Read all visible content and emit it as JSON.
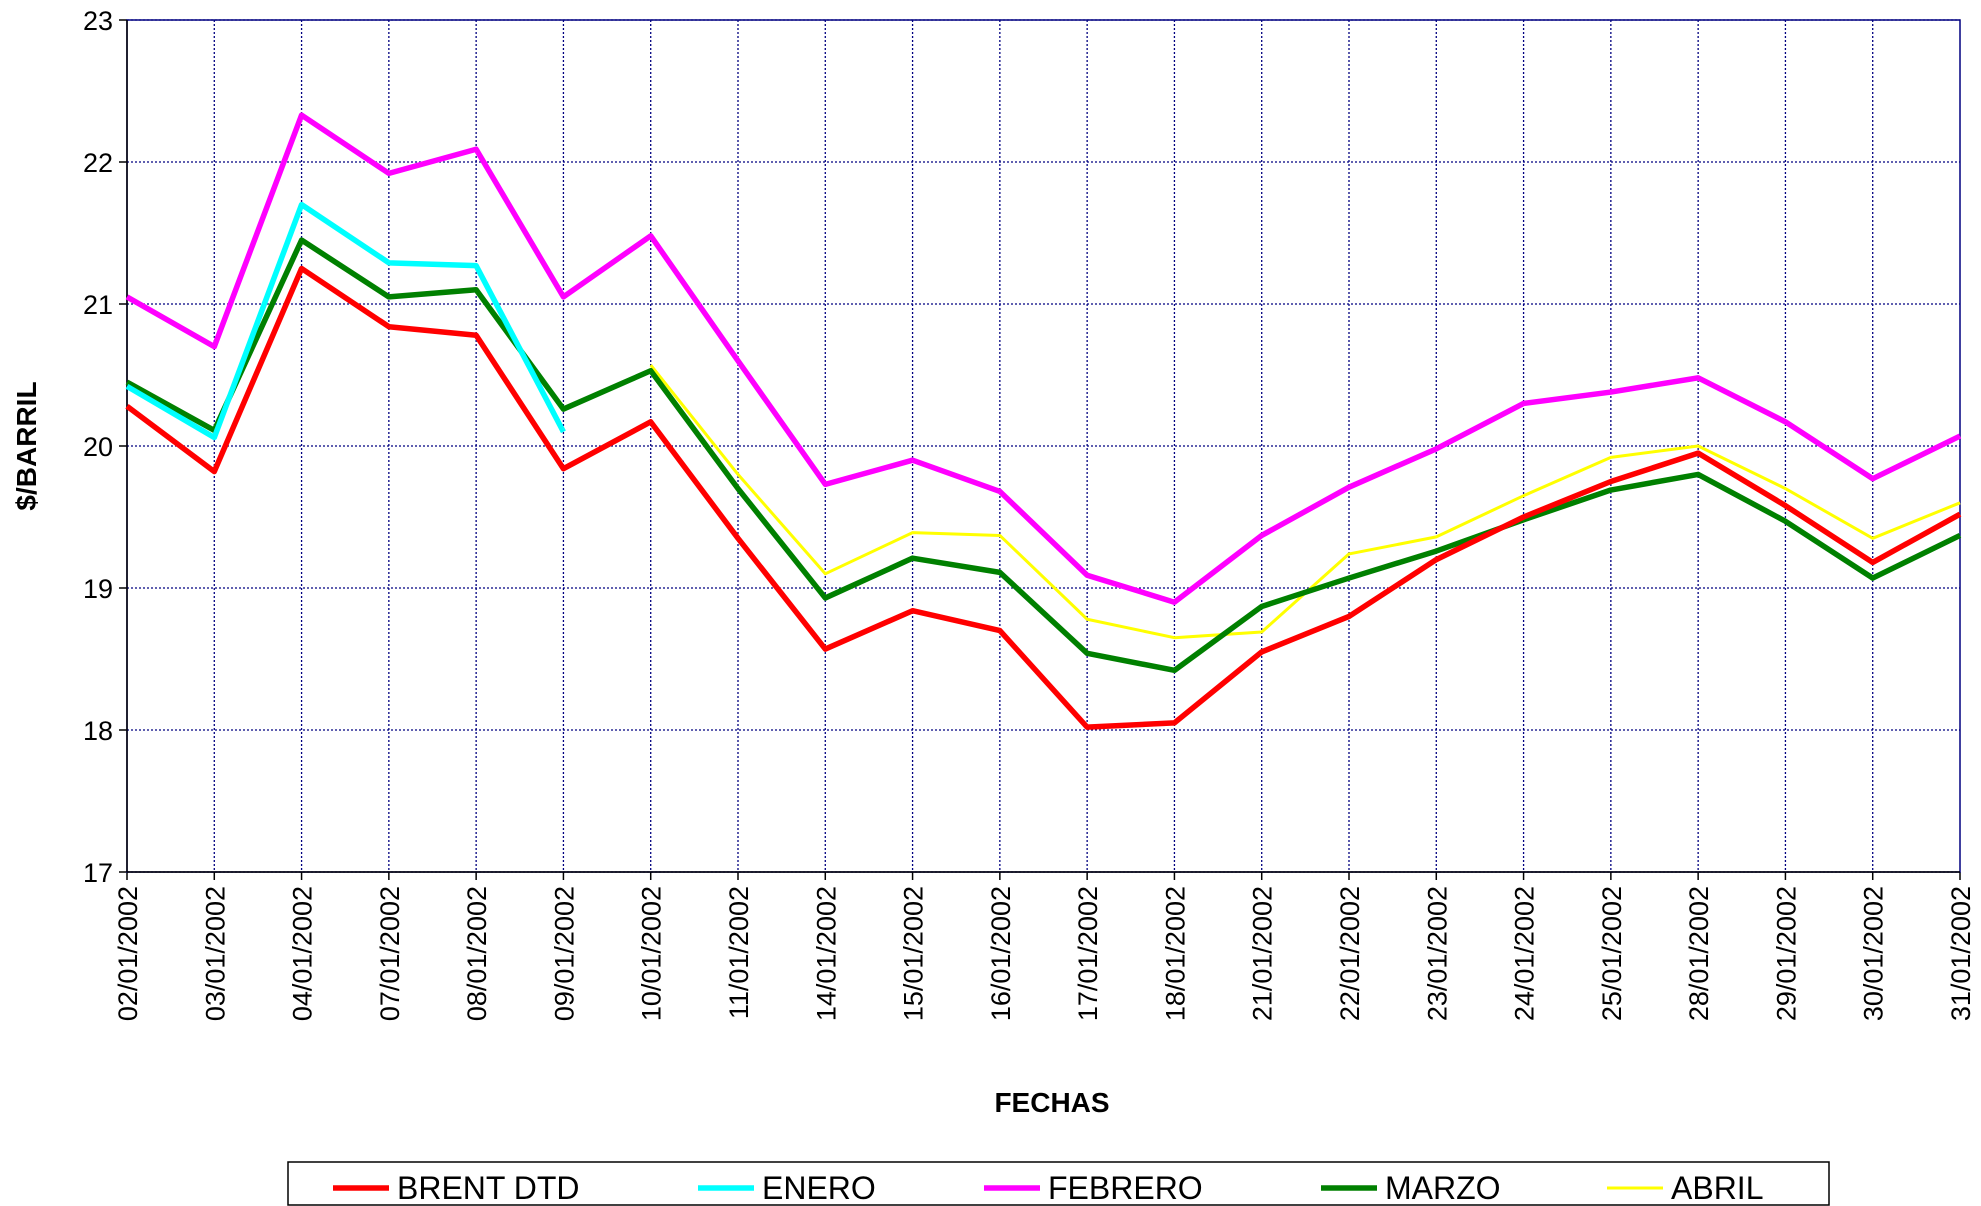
{
  "chart_data": {
    "type": "line",
    "x_label": "FECHAS",
    "y_label": "$/BARRIL",
    "categories": [
      "02/01/2002",
      "03/01/2002",
      "04/01/2002",
      "07/01/2002",
      "08/01/2002",
      "09/01/2002",
      "10/01/2002",
      "11/01/2002",
      "14/01/2002",
      "15/01/2002",
      "16/01/2002",
      "17/01/2002",
      "18/01/2002",
      "21/01/2002",
      "22/01/2002",
      "23/01/2002",
      "24/01/2002",
      "25/01/2002",
      "28/01/2002",
      "29/01/2002",
      "30/01/2002",
      "31/01/2002"
    ],
    "series": [
      {
        "name": "BRENT DTD",
        "color": "#ff0000",
        "values": [
          20.28,
          19.82,
          21.25,
          20.84,
          20.78,
          19.84,
          20.17,
          19.35,
          18.57,
          18.84,
          18.7,
          18.02,
          18.05,
          18.55,
          18.8,
          19.2,
          19.5,
          19.75,
          19.95,
          19.58,
          19.18,
          19.52
        ]
      },
      {
        "name": "ENERO",
        "color": "#00ffff",
        "values": [
          20.42,
          20.06,
          21.7,
          21.29,
          21.27,
          20.1,
          null,
          null,
          null,
          null,
          null,
          null,
          null,
          null,
          null,
          null,
          null,
          null,
          null,
          null,
          null,
          null
        ]
      },
      {
        "name": "FEBRERO",
        "color": "#ff00ff",
        "values": [
          21.05,
          20.7,
          22.33,
          21.92,
          22.09,
          21.05,
          21.48,
          20.6,
          19.73,
          19.9,
          19.68,
          19.09,
          18.9,
          19.37,
          19.71,
          19.98,
          20.3,
          20.38,
          20.48,
          20.17,
          19.77,
          20.07
        ]
      },
      {
        "name": "MARZO",
        "color": "#008000",
        "values": [
          20.45,
          20.11,
          21.45,
          21.05,
          21.1,
          20.26,
          20.53,
          19.7,
          18.93,
          19.21,
          19.11,
          18.54,
          18.42,
          18.87,
          19.07,
          19.26,
          19.48,
          19.69,
          19.8,
          19.47,
          19.07,
          19.37
        ]
      },
      {
        "name": "ABRIL",
        "color": "#ffff00",
        "values": [
          null,
          null,
          null,
          null,
          null,
          null,
          20.57,
          19.8,
          19.1,
          19.39,
          19.37,
          18.78,
          18.65,
          18.69,
          19.24,
          19.36,
          19.65,
          19.92,
          20.0,
          19.7,
          19.35,
          19.6
        ]
      }
    ],
    "ylim": [
      17,
      23
    ],
    "yticks": [
      17,
      18,
      19,
      20,
      21,
      22,
      23
    ],
    "grid": true
  }
}
